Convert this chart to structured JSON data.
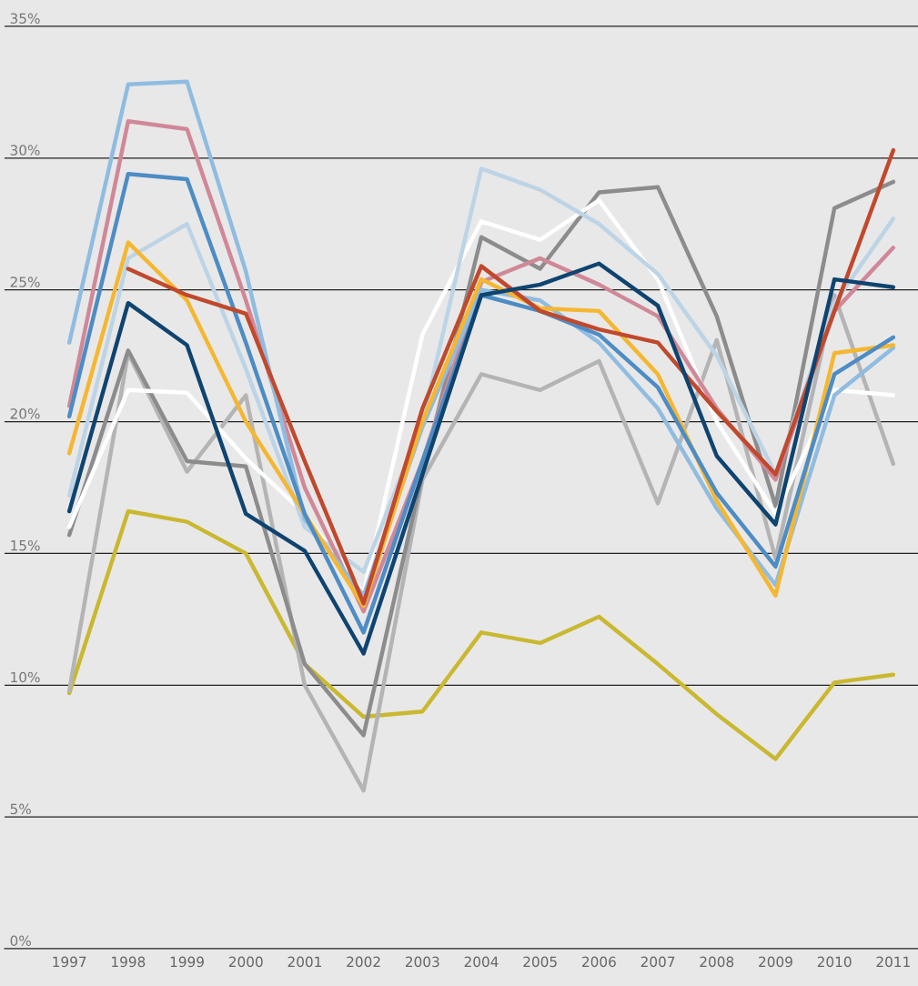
{
  "chart_data": {
    "type": "line",
    "categories": [
      "1997",
      "1998",
      "1999",
      "2000",
      "2001",
      "2002",
      "2003",
      "2004",
      "2005",
      "2006",
      "2007",
      "2008",
      "2009",
      "2010",
      "2011"
    ],
    "ylim": [
      0,
      36
    ],
    "yticks": [
      {
        "value": 0,
        "label": "0%"
      },
      {
        "value": 5,
        "label": "5%"
      },
      {
        "value": 10,
        "label": "10%"
      },
      {
        "value": 15,
        "label": "15%"
      },
      {
        "value": 20,
        "label": "20%"
      },
      {
        "value": 25,
        "label": "25%"
      },
      {
        "value": 30,
        "label": "30%"
      },
      {
        "value": 35,
        "label": "35%"
      }
    ],
    "grid": "y",
    "legend": false,
    "marker": "none",
    "line_style": "solid",
    "series": [
      {
        "color": "#c9b830",
        "values": [
          9.7,
          16.6,
          16.2,
          15.0,
          10.8,
          8.8,
          9.0,
          12.0,
          11.6,
          12.6,
          10.8,
          8.9,
          7.2,
          10.1,
          10.4
        ]
      },
      {
        "color": "#b4b4b4",
        "values": [
          9.8,
          22.6,
          18.1,
          21.0,
          10.0,
          6.0,
          17.8,
          21.8,
          21.2,
          22.3,
          16.9,
          23.1,
          14.8,
          24.8,
          18.4
        ]
      },
      {
        "color": "#8c8c8c",
        "values": [
          15.7,
          22.7,
          18.5,
          18.3,
          10.8,
          8.1,
          18.0,
          27.0,
          25.8,
          28.7,
          28.9,
          24.0,
          16.8,
          28.1,
          29.1
        ]
      },
      {
        "color": "#ffffff",
        "values": [
          16.0,
          21.2,
          21.1,
          18.6,
          16.5,
          13.5,
          23.3,
          27.6,
          26.9,
          28.4,
          25.4,
          20.0,
          16.5,
          21.2,
          21.0
        ]
      },
      {
        "color": "#bcd4e6",
        "values": [
          17.2,
          26.2,
          27.5,
          22.0,
          16.0,
          14.3,
          20.0,
          29.6,
          28.8,
          27.5,
          25.6,
          22.5,
          18.0,
          24.5,
          27.7
        ]
      },
      {
        "color": "#d08898",
        "values": [
          20.6,
          31.4,
          31.1,
          24.6,
          17.5,
          12.8,
          18.5,
          25.3,
          26.2,
          25.2,
          24.0,
          20.5,
          17.8,
          24.2,
          26.6
        ]
      },
      {
        "color": "#8fbce0",
        "values": [
          23.0,
          32.8,
          32.9,
          25.7,
          16.3,
          13.4,
          19.8,
          25.0,
          24.6,
          23.0,
          20.5,
          16.7,
          13.8,
          21.0,
          22.8
        ]
      },
      {
        "color": "#f5b731",
        "values": [
          18.8,
          26.8,
          24.6,
          20.0,
          16.5,
          13.0,
          20.0,
          25.4,
          24.3,
          24.2,
          21.8,
          17.0,
          13.4,
          22.6,
          22.9
        ]
      },
      {
        "color": "#4d8cc4",
        "values": [
          20.2,
          29.4,
          29.2,
          23.0,
          16.5,
          12.0,
          18.5,
          24.8,
          24.2,
          23.3,
          21.3,
          17.3,
          14.5,
          21.8,
          23.2
        ]
      },
      {
        "color": "#c0492d",
        "values": [
          null,
          25.8,
          24.8,
          24.1,
          18.5,
          13.1,
          20.5,
          25.9,
          24.2,
          23.5,
          23.0,
          20.4,
          18.0,
          24.2,
          30.3
        ]
      },
      {
        "color": "#0f4470",
        "values": [
          16.6,
          24.5,
          22.9,
          16.5,
          15.1,
          11.2,
          18.0,
          24.8,
          25.2,
          26.0,
          24.4,
          18.7,
          16.1,
          25.4,
          25.1
        ]
      }
    ]
  }
}
